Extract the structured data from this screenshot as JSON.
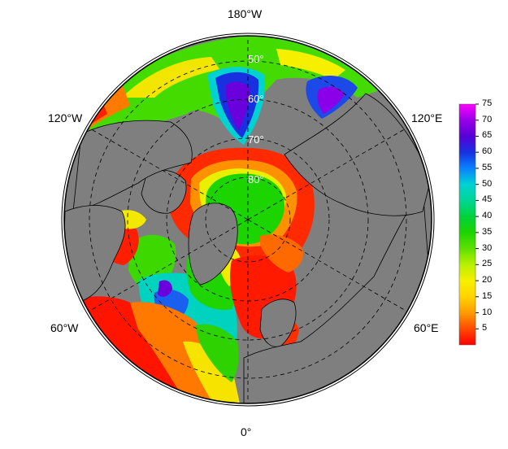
{
  "map": {
    "projection": "north-polar-stereographic",
    "ocean_color": "#7f7f7f",
    "longitude_labels": [
      "180°W",
      "120°E",
      "60°E",
      "0°",
      "60°W",
      "120°W"
    ],
    "latitude_labels": [
      "50°",
      "60°",
      "70°",
      "80°"
    ]
  },
  "colorbar": {
    "min": 0,
    "max": 75,
    "ticks": [
      "75",
      "70",
      "65",
      "60",
      "55",
      "50",
      "45",
      "40",
      "35",
      "30",
      "25",
      "20",
      "15",
      "10",
      "5"
    ],
    "colors": [
      "#ff0000",
      "#ff4a00",
      "#ff9a00",
      "#ffd400",
      "#f6f000",
      "#b8f000",
      "#5ee000",
      "#1cd400",
      "#00d23c",
      "#00d696",
      "#00d2d2",
      "#0a82ff",
      "#1830e0",
      "#5800d8",
      "#9800e8",
      "#ff00ff"
    ]
  }
}
